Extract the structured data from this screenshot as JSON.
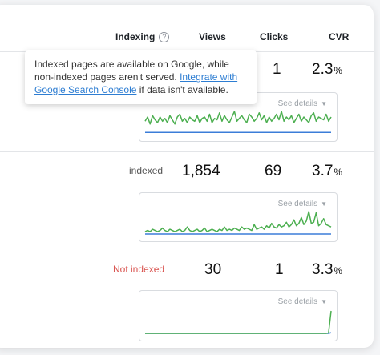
{
  "columns": {
    "indexing": "Indexing",
    "views": "Views",
    "clicks": "Clicks",
    "cvr": "CVR"
  },
  "tooltip": {
    "text_before": "Indexed pages are available on Google, while non-indexed pages aren't served. ",
    "link_text": "Integrate with Google Search Console",
    "text_after": " if data isn't available."
  },
  "rows": [
    {
      "status": "",
      "views": "",
      "clicks": "1",
      "cvr_value": "2.3",
      "cvr_unit": "%",
      "see_details": "See details"
    },
    {
      "status": "indexed",
      "views": "1,854",
      "clicks": "69",
      "cvr_value": "3.7",
      "cvr_unit": "%",
      "see_details": "See details"
    },
    {
      "status": "Not indexed",
      "views": "30",
      "clicks": "1",
      "cvr_value": "3.3",
      "cvr_unit": "%",
      "see_details": "See details"
    }
  ],
  "colors": {
    "views_line": "#4caf50",
    "clicks_line": "#3b7dd8",
    "not_indexed": "#d9534f"
  },
  "sparklines": [
    {
      "views": [
        9,
        12,
        7,
        13,
        10,
        8,
        12,
        9,
        11,
        8,
        13,
        10,
        7,
        12,
        14,
        9,
        11,
        8,
        12,
        10,
        9,
        13,
        8,
        11,
        12,
        9,
        14,
        8,
        11,
        10,
        15,
        9,
        13,
        10,
        8,
        12,
        16,
        9,
        11,
        13,
        10,
        8,
        14,
        12,
        9,
        11,
        15,
        10,
        13,
        8,
        12,
        9,
        11,
        14,
        10,
        16,
        9,
        12,
        10,
        13,
        8,
        11,
        14,
        9,
        12,
        10,
        8,
        13,
        15,
        9,
        12,
        11,
        10,
        14,
        9,
        12
      ],
      "clicks": [
        1,
        1,
        1,
        1,
        1,
        1,
        1,
        1,
        1,
        1,
        1,
        1,
        1,
        1,
        1,
        1,
        1,
        1,
        1,
        1,
        1,
        1,
        1,
        1,
        1,
        1,
        1,
        1,
        1,
        1,
        1,
        1,
        1,
        1,
        1,
        1,
        1,
        1,
        1,
        1,
        1,
        1,
        1,
        1,
        1,
        1,
        1,
        1,
        1,
        1,
        1,
        1,
        1,
        1,
        1,
        1,
        1,
        1,
        1,
        1,
        1,
        1,
        1,
        1,
        1,
        1,
        1,
        1,
        1,
        1,
        1,
        1,
        1,
        1,
        1,
        1
      ]
    },
    {
      "views": [
        2,
        3,
        2,
        4,
        3,
        2,
        3,
        5,
        3,
        2,
        4,
        3,
        2,
        3,
        4,
        2,
        3,
        6,
        3,
        2,
        3,
        4,
        2,
        3,
        5,
        2,
        3,
        4,
        3,
        2,
        4,
        3,
        6,
        3,
        4,
        3,
        5,
        4,
        3,
        6,
        4,
        5,
        4,
        3,
        8,
        4,
        5,
        6,
        4,
        7,
        5,
        9,
        6,
        5,
        8,
        6,
        7,
        10,
        6,
        8,
        12,
        7,
        9,
        14,
        8,
        11,
        19,
        9,
        10,
        18,
        7,
        9,
        13,
        8,
        7,
        6
      ],
      "clicks": [
        0,
        0,
        0,
        0,
        0,
        0,
        0,
        0,
        0,
        0,
        0,
        0,
        0,
        0,
        0,
        0,
        0,
        0,
        0,
        0,
        0,
        0,
        0,
        0,
        0,
        0,
        0,
        0,
        0,
        0,
        0,
        0,
        0,
        0,
        0,
        0,
        0,
        0,
        0,
        0,
        0,
        0,
        0,
        0,
        0,
        0,
        0,
        0,
        0,
        0,
        0,
        0,
        0,
        0,
        0,
        0,
        0,
        0,
        0,
        0,
        0,
        0,
        0,
        0,
        0,
        0,
        0,
        0,
        0,
        0,
        0,
        0,
        0,
        0,
        0,
        0
      ]
    },
    {
      "views": [
        0,
        0,
        0,
        0,
        0,
        0,
        0,
        0,
        0,
        0,
        0,
        0,
        0,
        0,
        0,
        0,
        0,
        0,
        0,
        0,
        0,
        0,
        0,
        0,
        0,
        0,
        0,
        0,
        0,
        0,
        0,
        0,
        0,
        0,
        0,
        0,
        0,
        0,
        0,
        0,
        0,
        0,
        0,
        0,
        0,
        0,
        0,
        0,
        0,
        0,
        0,
        0,
        0,
        0,
        0,
        0,
        0,
        0,
        0,
        0,
        0,
        0,
        0,
        0,
        0,
        0,
        0,
        0,
        0,
        0,
        0,
        0,
        0,
        0,
        1,
        30
      ],
      "clicks": [
        0,
        0,
        0,
        0,
        0,
        0,
        0,
        0,
        0,
        0,
        0,
        0,
        0,
        0,
        0,
        0,
        0,
        0,
        0,
        0,
        0,
        0,
        0,
        0,
        0,
        0,
        0,
        0,
        0,
        0,
        0,
        0,
        0,
        0,
        0,
        0,
        0,
        0,
        0,
        0,
        0,
        0,
        0,
        0,
        0,
        0,
        0,
        0,
        0,
        0,
        0,
        0,
        0,
        0,
        0,
        0,
        0,
        0,
        0,
        0,
        0,
        0,
        0,
        0,
        0,
        0,
        0,
        0,
        0,
        0,
        0,
        0,
        0,
        0,
        0,
        1
      ]
    }
  ]
}
